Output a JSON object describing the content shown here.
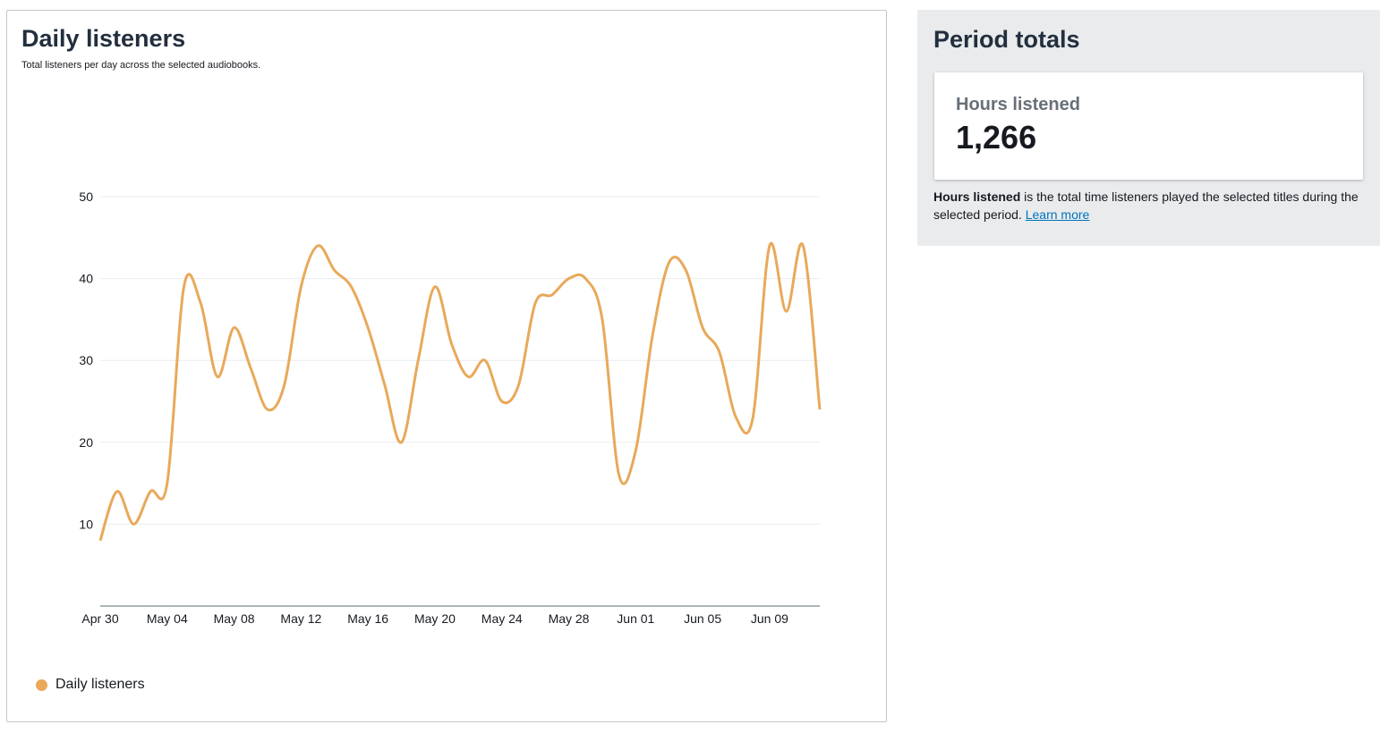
{
  "chart_data": {
    "type": "line",
    "title": "Daily listeners",
    "subtitle": "Total listeners per day across the selected audiobooks.",
    "categories": [
      "Apr 30",
      null,
      null,
      null,
      "May 04",
      null,
      null,
      null,
      "May 08",
      null,
      null,
      null,
      "May 12",
      null,
      null,
      null,
      "May 16",
      null,
      null,
      null,
      "May 20",
      null,
      null,
      null,
      "May 24",
      null,
      null,
      null,
      "May 28",
      null,
      null,
      null,
      "Jun 01",
      null,
      null,
      null,
      "Jun 05",
      null,
      null,
      null,
      "Jun 09",
      null,
      null,
      null
    ],
    "series": [
      {
        "name": "Daily listeners",
        "color": "#e8a95a",
        "values": [
          8,
          14,
          10,
          14,
          15,
          39,
          37,
          28,
          34,
          29,
          24,
          27,
          39,
          44,
          41,
          39,
          34,
          27,
          20,
          30,
          39,
          32,
          28,
          30,
          25,
          27,
          37,
          38,
          40,
          40,
          35,
          16,
          19,
          33,
          42,
          41,
          34,
          31,
          23,
          23,
          44,
          36,
          44,
          24
        ]
      }
    ],
    "ylim": [
      0,
      50
    ],
    "yticks": [
      10,
      20,
      30,
      40,
      50
    ],
    "grid": true,
    "legend": "bottom-left"
  },
  "side_panel": {
    "title": "Period totals",
    "metric_label": "Hours listened",
    "metric_value": "1,266",
    "note": {
      "bold": "Hours listened",
      "text": " is the total time listeners played the selected titles during the selected period.",
      "link": "Learn more"
    }
  }
}
